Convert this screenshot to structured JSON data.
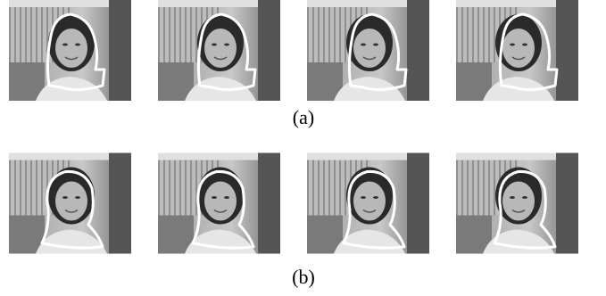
{
  "figure": {
    "rows": [
      {
        "label": "(a)"
      },
      {
        "label": "(b)"
      }
    ]
  }
}
